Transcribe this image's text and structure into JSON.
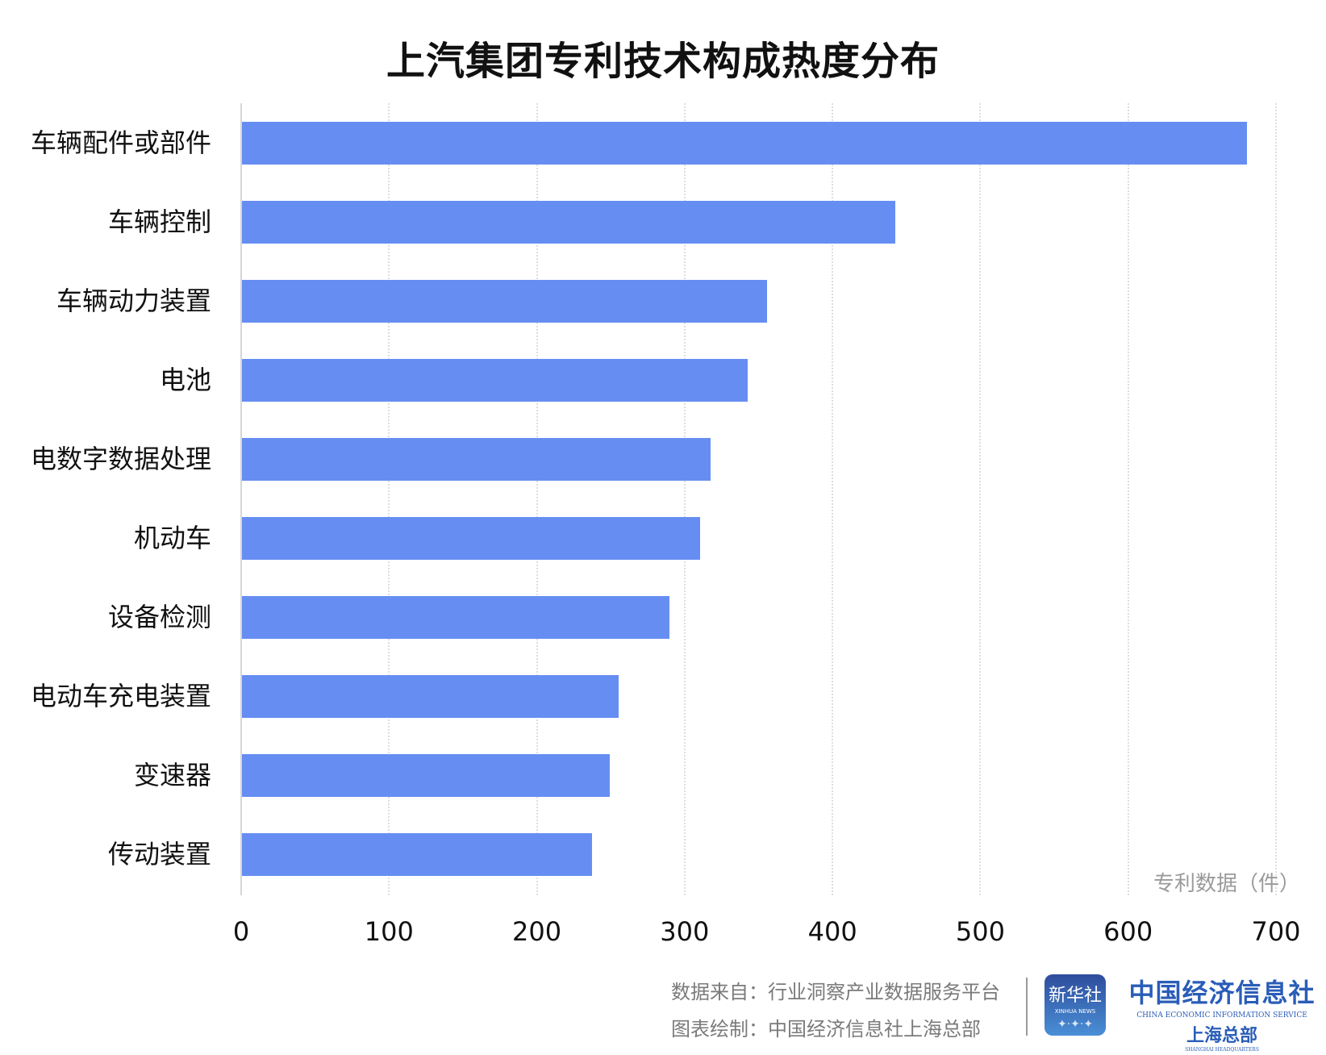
{
  "title": "上汽集团专利技术构成热度分布",
  "unit_label": "专利数据（件）",
  "footer": {
    "source": "数据来自：行业洞察产业数据服务平台",
    "credit": "图表绘制：中国经济信息社上海总部",
    "xinhua_logo": {
      "cn": "新华社",
      "en": "XINHUA NEWS",
      "icon": "network-globe-icon"
    },
    "ceis_logo": {
      "cn": "中国经济信息社",
      "en": "CHINA ECONOMIC INFORMATION SERVICE",
      "hq": "上海总部",
      "hq_en": "SHANGHAI HEADQUARTERS"
    }
  },
  "colors": {
    "bar": "#668ef2",
    "grid": "#dedede",
    "text": "#111111",
    "muted": "#7a7a7a"
  },
  "xticks": [
    "0",
    "100",
    "200",
    "300",
    "400",
    "500",
    "600",
    "700"
  ],
  "chart_data": {
    "type": "bar",
    "orientation": "horizontal",
    "title": "上汽集团专利技术构成热度分布",
    "xlabel": "专利数据（件）",
    "ylabel": "",
    "xlim": [
      0,
      700
    ],
    "grid": true,
    "categories": [
      "车辆配件或部件",
      "车辆控制",
      "车辆动力装置",
      "电池",
      "电数字数据处理",
      "机动车",
      "设备检测",
      "电动车充电装置",
      "变速器",
      "传动装置"
    ],
    "values": [
      680,
      442,
      355,
      342,
      317,
      310,
      289,
      255,
      249,
      237
    ]
  }
}
